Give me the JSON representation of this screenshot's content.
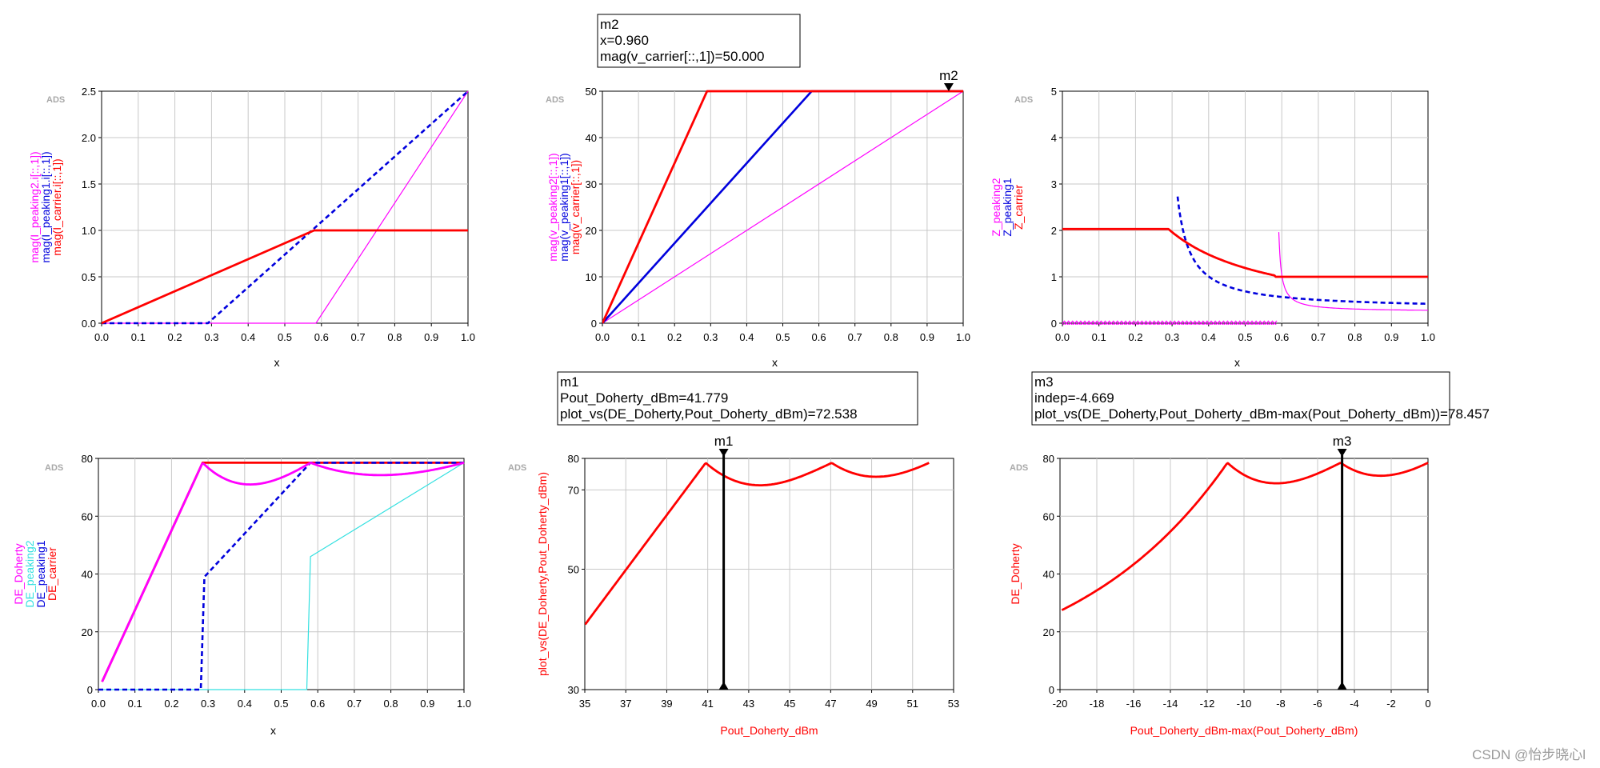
{
  "watermark": "CSDN @怡步晓心l",
  "ads_tag": "ADS",
  "colors": {
    "red": "#ff0000",
    "blue": "#0000dd",
    "magenta": "#ff00ff",
    "cyan": "#33e0e0",
    "black": "#000000",
    "grid": "#c8c8c8"
  },
  "chart_data": [
    {
      "id": "currents",
      "type": "line",
      "title": "",
      "xlabel": "x",
      "ylabel_entries": [
        {
          "text": "mag(I_peaking2.i[::,1])",
          "color": "magenta"
        },
        {
          "text": "mag(I_peaking1.i[::,1])",
          "color": "blue"
        },
        {
          "text": "mag(I_carrier.i[::,1])",
          "color": "red"
        }
      ],
      "xlim": [
        0,
        1.0
      ],
      "ylim": [
        0,
        2.5
      ],
      "xticks": [
        "0.0",
        "0.1",
        "0.2",
        "0.3",
        "0.4",
        "0.5",
        "0.6",
        "0.7",
        "0.8",
        "0.9",
        "1.0"
      ],
      "yticks": [
        "0.0",
        "0.5",
        "1.0",
        "1.5",
        "2.0",
        "2.5"
      ],
      "ytick_values": [
        0,
        0.5,
        1.0,
        1.5,
        2.0,
        2.5
      ],
      "series": [
        {
          "name": "mag(I_peaking2.i[::,1])",
          "color": "magenta",
          "style": "thin",
          "x": [
            0,
            0.585,
            1.0
          ],
          "y": [
            0,
            0,
            2.5
          ]
        },
        {
          "name": "mag(I_peaking1.i[::,1])",
          "color": "blue",
          "style": "dash",
          "x": [
            0,
            0.29,
            1.0
          ],
          "y": [
            0,
            0,
            2.5
          ]
        },
        {
          "name": "mag(I_carrier.i[::,1])",
          "color": "red",
          "style": "thick",
          "x": [
            0,
            0.58,
            1.0
          ],
          "y": [
            0,
            1.0,
            1.0
          ]
        }
      ]
    },
    {
      "id": "voltages",
      "type": "line",
      "title": "",
      "xlabel": "x",
      "ylabel_entries": [
        {
          "text": "mag(v_peaking2[::,1])",
          "color": "magenta"
        },
        {
          "text": "mag(v_peaking1[::,1])",
          "color": "blue"
        },
        {
          "text": "mag(v_carrier[::,1])",
          "color": "red"
        }
      ],
      "xlim": [
        0,
        1.0
      ],
      "ylim": [
        0,
        50
      ],
      "xticks": [
        "0.0",
        "0.1",
        "0.2",
        "0.3",
        "0.4",
        "0.5",
        "0.6",
        "0.7",
        "0.8",
        "0.9",
        "1.0"
      ],
      "yticks": [
        "0",
        "10",
        "20",
        "30",
        "40",
        "50"
      ],
      "ytick_values": [
        0,
        10,
        20,
        30,
        40,
        50
      ],
      "series": [
        {
          "name": "mag(v_peaking2[::,1])",
          "color": "magenta",
          "style": "thin",
          "x": [
            0,
            1.0
          ],
          "y": [
            0,
            50
          ]
        },
        {
          "name": "mag(v_peaking1[::,1])",
          "color": "blue",
          "style": "solid",
          "x": [
            0,
            0.58,
            1.0
          ],
          "y": [
            0,
            50,
            50
          ]
        },
        {
          "name": "mag(v_carrier[::,1])",
          "color": "red",
          "style": "thick",
          "x": [
            0,
            0.29,
            1.0
          ],
          "y": [
            0,
            50,
            50
          ]
        }
      ],
      "marker": {
        "name": "m2",
        "x": 0.96,
        "y": 50,
        "style": "top-triangle",
        "box_lines": [
          "m2",
          "x=0.960",
          "mag(v_carrier[::,1])=50.000"
        ]
      }
    },
    {
      "id": "impedances",
      "type": "line",
      "title": "",
      "xlabel": "x",
      "ylabel_entries": [
        {
          "text": "Z_peaking2",
          "color": "magenta"
        },
        {
          "text": "Z_peaking1",
          "color": "blue"
        },
        {
          "text": "Z_carrier",
          "color": "red"
        }
      ],
      "xlim": [
        0,
        1.0
      ],
      "ylim": [
        0,
        5
      ],
      "xticks": [
        "0.0",
        "0.1",
        "0.2",
        "0.3",
        "0.4",
        "0.5",
        "0.6",
        "0.7",
        "0.8",
        "0.9",
        "1.0"
      ],
      "yticks": [
        "0",
        "1",
        "2",
        "3",
        "4",
        "5"
      ],
      "ytick_values": [
        0,
        1,
        2,
        3,
        4,
        5
      ],
      "series": [
        {
          "name": "Z_peaking2",
          "color": "magenta",
          "style": "thin",
          "formula": "z2",
          "x_start": 0.592,
          "x_end": 1.0
        },
        {
          "name": "Z_peaking2_off",
          "color": "magenta",
          "style": "xmarks",
          "x": [
            0,
            0.58
          ],
          "y": [
            0,
            0
          ]
        },
        {
          "name": "Z_peaking1",
          "color": "blue",
          "style": "dash",
          "formula": "z1",
          "x_start": 0.315,
          "x_end": 1.0
        },
        {
          "name": "Z_carrier",
          "color": "red",
          "style": "thick",
          "formula": "zc",
          "x_start": 0.0,
          "x_end": 1.0
        }
      ]
    },
    {
      "id": "efficiency_x",
      "type": "line",
      "title": "",
      "xlabel": "x",
      "ylabel_entries": [
        {
          "text": "DE_Doherty",
          "color": "magenta"
        },
        {
          "text": "DE_peaking2",
          "color": "cyan"
        },
        {
          "text": "DE_peaking1",
          "color": "blue"
        },
        {
          "text": "DE_carrier",
          "color": "red"
        }
      ],
      "xlim": [
        0,
        1.0
      ],
      "ylim": [
        0,
        80
      ],
      "xticks": [
        "0.0",
        "0.1",
        "0.2",
        "0.3",
        "0.4",
        "0.5",
        "0.6",
        "0.7",
        "0.8",
        "0.9",
        "1.0"
      ],
      "yticks": [
        "0",
        "20",
        "40",
        "60",
        "80"
      ],
      "ytick_values": [
        0,
        20,
        40,
        60,
        80
      ],
      "series": [
        {
          "name": "DE_peaking2",
          "color": "cyan",
          "style": "thin",
          "x": [
            0,
            0.57,
            0.58,
            1.0
          ],
          "y": [
            0,
            0,
            46,
            78.5
          ]
        },
        {
          "name": "DE_carrier",
          "color": "red",
          "style": "thick",
          "x": [
            0.01,
            0.285,
            1.0
          ],
          "y": [
            2.7,
            78.5,
            78.5
          ]
        },
        {
          "name": "DE_peaking1",
          "color": "blue",
          "style": "dash",
          "x": [
            0,
            0.28,
            0.29,
            0.58,
            1.0
          ],
          "y": [
            0,
            0,
            39,
            78.5,
            78.5
          ]
        },
        {
          "name": "DE_Doherty",
          "color": "magenta",
          "style": "thick",
          "formula": "de_doherty"
        }
      ]
    },
    {
      "id": "efficiency_pout",
      "type": "line",
      "title": "",
      "xlabel": "Pout_Doherty_dBm",
      "xlabel_color": "red",
      "ylabel_entries": [
        {
          "text": "plot_vs(DE_Doherty,Pout_Doherty_dBm)",
          "color": "red"
        }
      ],
      "yscale": "log",
      "xlim": [
        35,
        53
      ],
      "ylim": [
        30,
        80
      ],
      "xticks": [
        "35",
        "37",
        "39",
        "41",
        "43",
        "45",
        "47",
        "49",
        "51",
        "53"
      ],
      "yticks": [
        "30",
        "50",
        "70",
        "80"
      ],
      "ytick_values": [
        30,
        50,
        70,
        80
      ],
      "series": [
        {
          "name": "plot_vs(DE_Doherty,Pout_Doherty_dBm)",
          "color": "red",
          "style": "thick",
          "formula": "de_vs_pout",
          "x_offset": 51.8
        }
      ],
      "marker": {
        "name": "m1",
        "x": 41.779,
        "y": 72.538,
        "style": "vertical-line",
        "box_lines": [
          "m1",
          "Pout_Doherty_dBm=41.779",
          "plot_vs(DE_Doherty,Pout_Doherty_dBm)=72.538"
        ]
      }
    },
    {
      "id": "efficiency_backoff",
      "type": "line",
      "title": "",
      "xlabel": "Pout_Doherty_dBm-max(Pout_Doherty_dBm)",
      "xlabel_color": "red",
      "ylabel_entries": [
        {
          "text": "DE_Doherty",
          "color": "red"
        }
      ],
      "xlim": [
        -20,
        0
      ],
      "ylim": [
        0,
        80
      ],
      "xticks": [
        "-20",
        "-18",
        "-16",
        "-14",
        "-12",
        "-10",
        "-8",
        "-6",
        "-4",
        "-2",
        "0"
      ],
      "yticks": [
        "0",
        "20",
        "40",
        "60",
        "80"
      ],
      "ytick_values": [
        0,
        20,
        40,
        60,
        80
      ],
      "series": [
        {
          "name": "DE_Doherty",
          "color": "red",
          "style": "thick",
          "formula": "de_vs_pout",
          "x_offset": 0
        }
      ],
      "marker": {
        "name": "m3",
        "x": -4.669,
        "y": 78.457,
        "style": "vertical-line",
        "box_lines": [
          "m3",
          "indep=-4.669",
          "plot_vs(DE_Doherty,Pout_Doherty_dBm-max(Pout_Doherty_dBm))=78.457"
        ]
      }
    }
  ]
}
